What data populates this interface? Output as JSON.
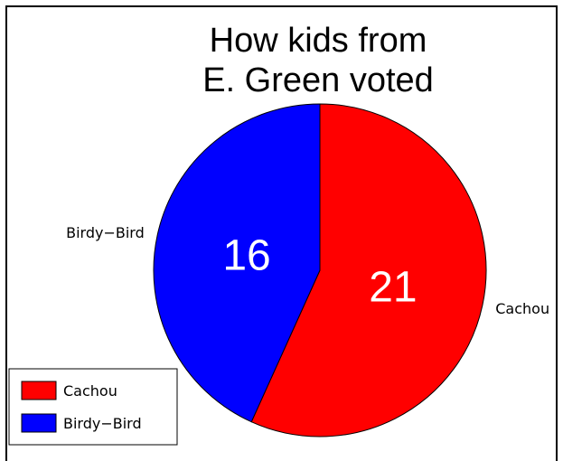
{
  "chart_data": {
    "type": "pie",
    "title_lines": [
      "How kids from",
      "E. Green voted"
    ],
    "slices": [
      {
        "label": "Cachou",
        "value": 21,
        "color": "#ff0000"
      },
      {
        "label": "Birdy−Bird",
        "value": 16,
        "color": "#0000ff"
      }
    ],
    "start_angle_deg": 90,
    "direction": "clockwise",
    "legend": {
      "position": "bottom-left",
      "entries": [
        {
          "label": "Cachou",
          "color": "#ff0000"
        },
        {
          "label": "Birdy−Bird",
          "color": "#0000ff"
        }
      ]
    }
  }
}
